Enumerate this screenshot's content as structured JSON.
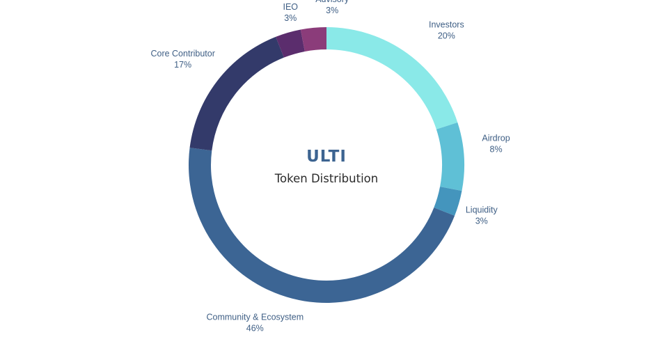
{
  "center": {
    "title": "ULTI",
    "subtitle": "Token Distribution"
  },
  "chart_data": {
    "type": "pie",
    "style": "donut",
    "start_angle_deg": 0,
    "direction": "clockwise",
    "slices": [
      {
        "name": "Investors",
        "value": 20,
        "label": "20%",
        "color": "#8ae9e8"
      },
      {
        "name": "Airdrop",
        "value": 8,
        "label": "8%",
        "color": "#5fc0d6"
      },
      {
        "name": "Liquidity",
        "value": 3,
        "label": "3%",
        "color": "#4495bd"
      },
      {
        "name": "Community & Ecosystem",
        "value": 46,
        "label": "46%",
        "color": "#3c6594"
      },
      {
        "name": "Core Contributor",
        "value": 17,
        "label": "17%",
        "color": "#333a6a"
      },
      {
        "name": "IEO",
        "value": 3,
        "label": "3%",
        "color": "#5b2d6d"
      },
      {
        "name": "Advisory",
        "value": 3,
        "label": "3%",
        "color": "#8b3c7a"
      }
    ]
  }
}
